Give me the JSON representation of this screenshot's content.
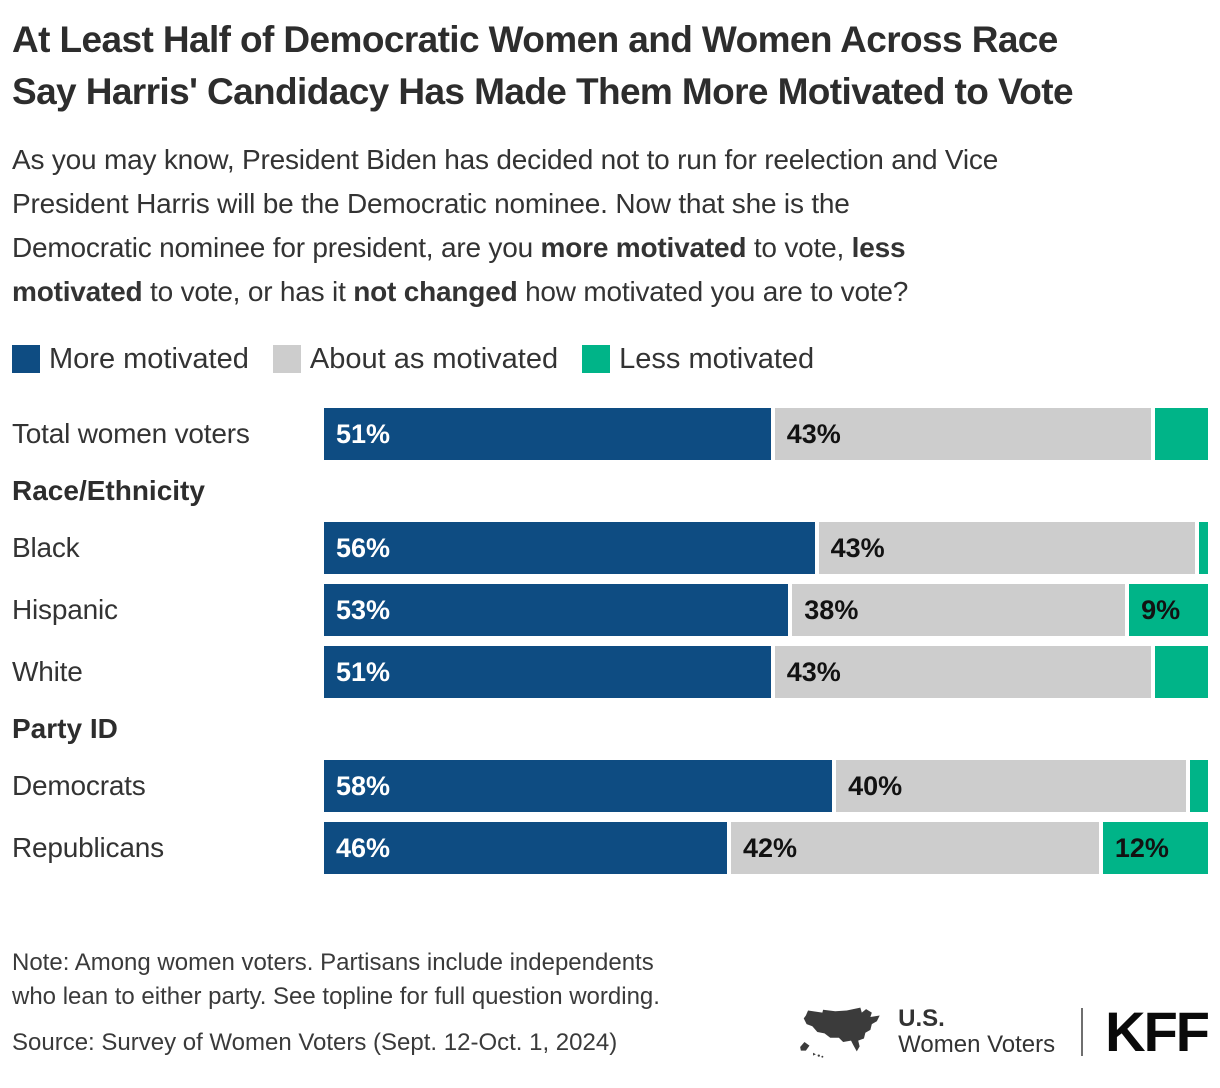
{
  "title_lines": [
    "At Least Half of Democratic Women and Women Across Race",
    "Say Harris' Candidacy Has Made Them More Motivated to Vote"
  ],
  "subtitle_segments": [
    {
      "text": "As you may know, President Biden has decided not to run for reelection and Vice",
      "bold": false,
      "break": true
    },
    {
      "text": "President Harris will be the Democratic nominee. Now that she is the",
      "bold": false,
      "break": true
    },
    {
      "text": "Democratic nominee for president, are you ",
      "bold": false,
      "break": false
    },
    {
      "text": "more motivated",
      "bold": true,
      "break": false
    },
    {
      "text": " to vote, ",
      "bold": false,
      "break": false
    },
    {
      "text": "less",
      "bold": true,
      "break": true
    },
    {
      "text": "motivated",
      "bold": true,
      "break": false
    },
    {
      "text": " to vote, or has it ",
      "bold": false,
      "break": false
    },
    {
      "text": "not changed",
      "bold": true,
      "break": false
    },
    {
      "text": " how motivated you are to vote?",
      "bold": false,
      "break": false
    }
  ],
  "colors": {
    "more": "#0E4C82",
    "about": "#CDCDCD",
    "less": "#00B488",
    "title_text": "#2D2D2D",
    "body_text": "#333333"
  },
  "legend": [
    {
      "label": "More motivated",
      "color_key": "more"
    },
    {
      "label": "About as motivated",
      "color_key": "about"
    },
    {
      "label": "Less motivated",
      "color_key": "less"
    }
  ],
  "chart_data": {
    "type": "bar",
    "orientation": "horizontal",
    "stacked": true,
    "unit": "%",
    "xlim": [
      0,
      100
    ],
    "grid": false,
    "legend_position": "top",
    "series_names": [
      "More motivated",
      "About as motivated",
      "Less motivated"
    ],
    "groups": [
      {
        "header": null,
        "rows": [
          {
            "label": "Total women voters",
            "values": [
              51,
              43,
              6
            ],
            "value_labels": [
              "51%",
              "43%",
              ""
            ]
          }
        ]
      },
      {
        "header": "Race/Ethnicity",
        "rows": [
          {
            "label": "Black",
            "values": [
              56,
              43,
              1
            ],
            "value_labels": [
              "56%",
              "43%",
              ""
            ]
          },
          {
            "label": "Hispanic",
            "values": [
              53,
              38,
              9
            ],
            "value_labels": [
              "53%",
              "38%",
              "9%"
            ]
          },
          {
            "label": "White",
            "values": [
              51,
              43,
              6
            ],
            "value_labels": [
              "51%",
              "43%",
              ""
            ]
          }
        ]
      },
      {
        "header": "Party ID",
        "rows": [
          {
            "label": "Democrats",
            "values": [
              58,
              40,
              2
            ],
            "value_labels": [
              "58%",
              "40%",
              ""
            ]
          },
          {
            "label": "Republicans",
            "values": [
              46,
              42,
              12
            ],
            "value_labels": [
              "46%",
              "42%",
              "12%"
            ]
          }
        ]
      }
    ]
  },
  "footer": {
    "note_lines": [
      "Note: Among women voters. Partisans include independents",
      "who lean to either party. See topline for full question wording."
    ],
    "source": "Source: Survey of Women Voters (Sept. 12-Oct. 1, 2024)",
    "brand": {
      "region_label": "U.S.",
      "audience_label": "Women Voters",
      "logo": "KFF"
    }
  }
}
